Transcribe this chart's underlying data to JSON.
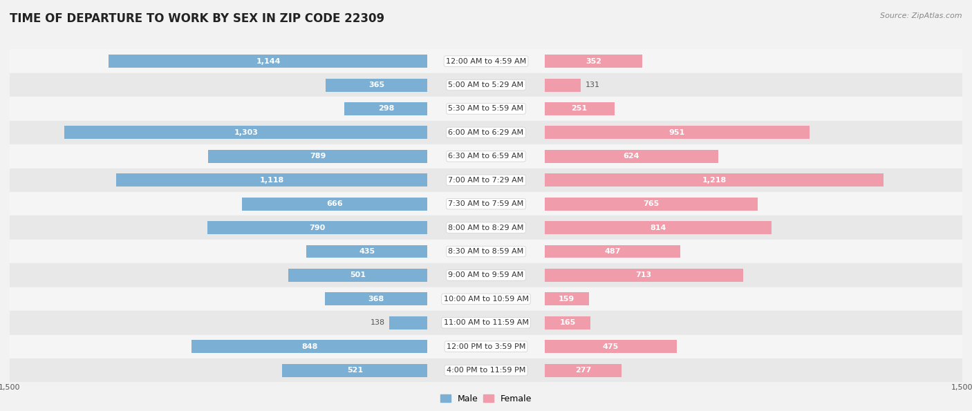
{
  "title": "TIME OF DEPARTURE TO WORK BY SEX IN ZIP CODE 22309",
  "source": "Source: ZipAtlas.com",
  "categories": [
    "12:00 AM to 4:59 AM",
    "5:00 AM to 5:29 AM",
    "5:30 AM to 5:59 AM",
    "6:00 AM to 6:29 AM",
    "6:30 AM to 6:59 AM",
    "7:00 AM to 7:29 AM",
    "7:30 AM to 7:59 AM",
    "8:00 AM to 8:29 AM",
    "8:30 AM to 8:59 AM",
    "9:00 AM to 9:59 AM",
    "10:00 AM to 10:59 AM",
    "11:00 AM to 11:59 AM",
    "12:00 PM to 3:59 PM",
    "4:00 PM to 11:59 PM"
  ],
  "male_values": [
    1144,
    365,
    298,
    1303,
    789,
    1118,
    666,
    790,
    435,
    501,
    368,
    138,
    848,
    521
  ],
  "female_values": [
    352,
    131,
    251,
    951,
    624,
    1218,
    765,
    814,
    487,
    713,
    159,
    165,
    475,
    277
  ],
  "male_color": "#7bafd4",
  "female_color": "#f09caa",
  "label_color_inside": "#ffffff",
  "label_color_outside": "#555555",
  "row_bg_light": "#f5f5f5",
  "row_bg_dark": "#e8e8e8",
  "axis_max": 1500,
  "title_fontsize": 12,
  "value_fontsize": 8,
  "category_fontsize": 8,
  "legend_fontsize": 9,
  "source_fontsize": 8,
  "bar_height": 0.55,
  "inside_threshold": 150
}
